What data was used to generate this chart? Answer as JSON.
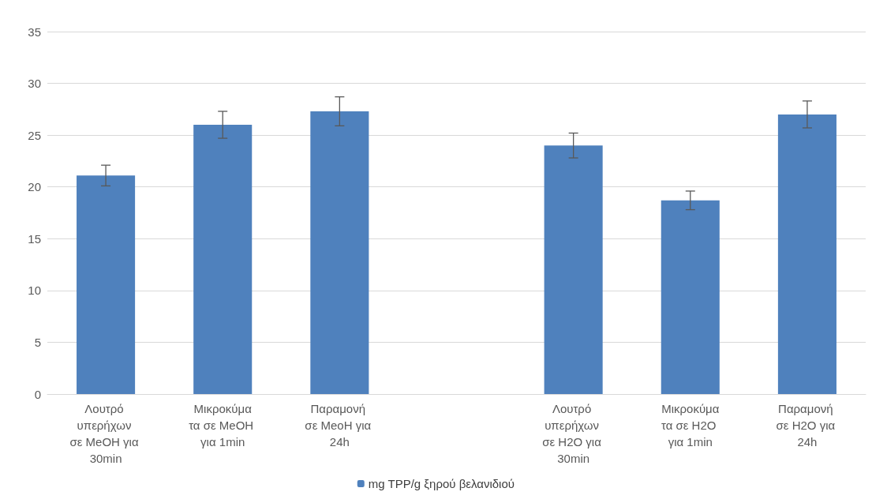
{
  "chart_data": {
    "type": "bar",
    "categories": [
      "Λουτρό υπερήχων σε MeOH για 30min",
      "Μικροκύματα σε MeOH για 1min",
      "Παραμονή σε MeoH για 24h",
      null,
      "Λουτρό υπερήχων σε H2O για 30min",
      "Μικροκύματα σε H2O για 1min",
      "Παραμονή σε H2O για 24h"
    ],
    "series": [
      {
        "name": "mg TPP/g ξηρού βελανιδιού",
        "color": "#4f81bd",
        "values": [
          21.1,
          26.0,
          27.3,
          null,
          24.0,
          18.7,
          27.0
        ],
        "errors": [
          1.0,
          1.3,
          1.4,
          null,
          1.2,
          0.9,
          1.3
        ]
      }
    ],
    "ylim": [
      0,
      35
    ],
    "yticks": [
      0,
      5,
      10,
      15,
      20,
      25,
      30,
      35
    ],
    "grid": "y",
    "legend": "bottom"
  }
}
